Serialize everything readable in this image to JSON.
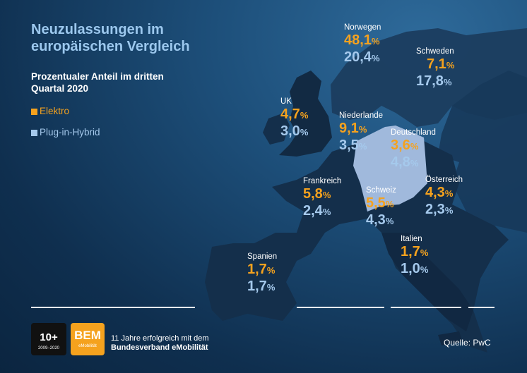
{
  "title": "Neuzulassungen im europäischen Vergleich",
  "subtitle": "Prozentualer Anteil im dritten Quartal 2020",
  "legend": {
    "elektro": "Elektro",
    "hybrid": "Plug-in-Hybrid"
  },
  "colors": {
    "elektro": "#f5a21e",
    "hybrid": "#a5c9ec",
    "highlight_country": "#a0b9dc",
    "land": "#142f4b",
    "background": "#1d4f7a"
  },
  "countries": {
    "norwegen": {
      "name": "Norwegen",
      "e_num": "48,1",
      "p_num": "20,4"
    },
    "schweden": {
      "name": "Schweden",
      "e_num": "7,1",
      "p_num": "17,8"
    },
    "uk": {
      "name": "UK",
      "e_num": "4,7",
      "p_num": "3,0"
    },
    "niederlande": {
      "name": "Niederlande",
      "e_num": "9,1",
      "p_num": "3,5"
    },
    "deutschland": {
      "name": "Deutschland",
      "e_num": "3,6",
      "p_num": "4,8"
    },
    "frankreich": {
      "name": "Frankreich",
      "e_num": "5,8",
      "p_num": "2,4"
    },
    "schweiz": {
      "name": "Schweiz",
      "e_num": "5,5",
      "p_num": "4,3"
    },
    "oesterreich": {
      "name": "Österreich",
      "e_num": "4,3",
      "p_num": "2,3"
    },
    "italien": {
      "name": "Italien",
      "e_num": "1,7",
      "p_num": "1,0"
    },
    "spanien": {
      "name": "Spanien",
      "e_num": "1,7",
      "p_num": "1,7"
    }
  },
  "percent_sign": "%",
  "source": "Quelle: PwC",
  "logo_10": {
    "number": "10+",
    "years": "2009–2020"
  },
  "logo_bem": {
    "name": "BEM",
    "sub": "eMobilität"
  },
  "tagline": {
    "line1": "11 Jahre erfolgreich mit dem",
    "line2": "Bundesverband eMobilität"
  }
}
